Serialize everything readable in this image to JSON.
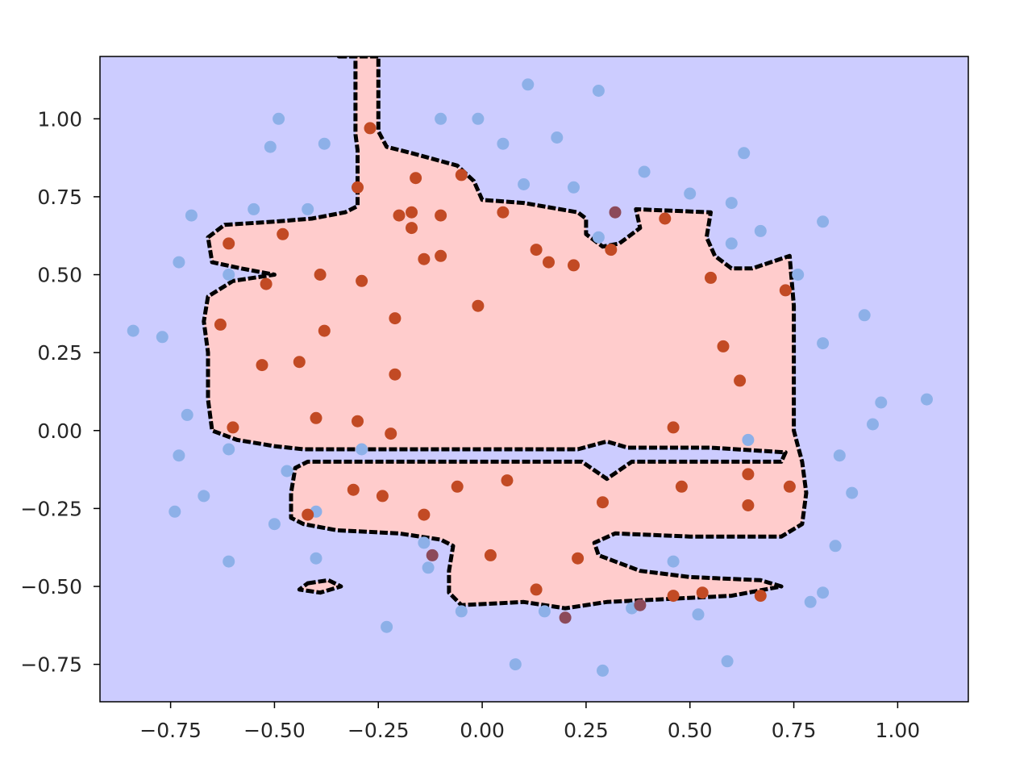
{
  "chart_data": {
    "type": "scatter",
    "title": "",
    "xlabel": "",
    "ylabel": "",
    "xlim": [
      -0.92,
      1.17
    ],
    "ylim": [
      -0.87,
      1.2
    ],
    "grid": false,
    "legend": "none",
    "xticks": [
      {
        "value": -0.75,
        "label": "−0.75"
      },
      {
        "value": -0.5,
        "label": "−0.50"
      },
      {
        "value": -0.25,
        "label": "−0.25"
      },
      {
        "value": 0.0,
        "label": "0.00"
      },
      {
        "value": 0.25,
        "label": "0.25"
      },
      {
        "value": 0.5,
        "label": "0.50"
      },
      {
        "value": 0.75,
        "label": "0.75"
      },
      {
        "value": 1.0,
        "label": "1.00"
      }
    ],
    "yticks": [
      {
        "value": -0.75,
        "label": "−0.75"
      },
      {
        "value": -0.5,
        "label": "−0.50"
      },
      {
        "value": -0.25,
        "label": "−0.25"
      },
      {
        "value": 0.0,
        "label": "0.00"
      },
      {
        "value": 0.25,
        "label": "0.25"
      },
      {
        "value": 0.5,
        "label": "0.50"
      },
      {
        "value": 0.75,
        "label": "0.75"
      },
      {
        "value": 1.0,
        "label": "1.00"
      }
    ],
    "colors": {
      "background_region": "#ccccff",
      "decision_region": "#ffcccc",
      "class_0_point": "#8db0e8",
      "class_1_point": "#c24a24",
      "misclassified_point": "#8c4a5a",
      "contour": "#000000"
    },
    "decision_region": [
      [
        -0.345,
        1.2
      ],
      [
        -0.305,
        1.2
      ],
      [
        -0.305,
        0.95
      ],
      [
        -0.3,
        0.9
      ],
      [
        -0.3,
        0.82
      ],
      [
        -0.3,
        0.72
      ],
      [
        -0.33,
        0.7
      ],
      [
        -0.41,
        0.68
      ],
      [
        -0.5,
        0.67
      ],
      [
        -0.62,
        0.66
      ],
      [
        -0.66,
        0.62
      ],
      [
        -0.65,
        0.54
      ],
      [
        -0.58,
        0.52
      ],
      [
        -0.5,
        0.5
      ],
      [
        -0.6,
        0.48
      ],
      [
        -0.66,
        0.43
      ],
      [
        -0.67,
        0.35
      ],
      [
        -0.66,
        0.25
      ],
      [
        -0.66,
        0.1
      ],
      [
        -0.65,
        0.0
      ],
      [
        -0.59,
        -0.03
      ],
      [
        -0.5,
        -0.05
      ],
      [
        -0.43,
        -0.06
      ],
      [
        -0.3,
        -0.06
      ],
      [
        -0.1,
        -0.06
      ],
      [
        0.05,
        -0.06
      ],
      [
        0.23,
        -0.06
      ],
      [
        0.3,
        -0.035
      ],
      [
        0.35,
        -0.055
      ],
      [
        0.55,
        -0.055
      ],
      [
        0.73,
        -0.07
      ],
      [
        0.72,
        -0.1
      ],
      [
        0.55,
        -0.1
      ],
      [
        0.36,
        -0.1
      ],
      [
        0.3,
        -0.155
      ],
      [
        0.24,
        -0.1
      ],
      [
        -0.05,
        -0.1
      ],
      [
        -0.42,
        -0.1
      ],
      [
        -0.45,
        -0.12
      ],
      [
        -0.46,
        -0.2
      ],
      [
        -0.46,
        -0.28
      ],
      [
        -0.43,
        -0.3
      ],
      [
        -0.35,
        -0.32
      ],
      [
        -0.2,
        -0.33
      ],
      [
        -0.1,
        -0.35
      ],
      [
        -0.07,
        -0.37
      ],
      [
        -0.08,
        -0.45
      ],
      [
        -0.08,
        -0.52
      ],
      [
        -0.05,
        -0.56
      ],
      [
        0.1,
        -0.55
      ],
      [
        0.2,
        -0.57
      ],
      [
        0.3,
        -0.55
      ],
      [
        0.45,
        -0.54
      ],
      [
        0.6,
        -0.53
      ],
      [
        0.72,
        -0.5
      ],
      [
        0.67,
        -0.48
      ],
      [
        0.5,
        -0.47
      ],
      [
        0.38,
        -0.45
      ],
      [
        0.28,
        -0.4
      ],
      [
        0.27,
        -0.36
      ],
      [
        0.32,
        -0.33
      ],
      [
        0.5,
        -0.34
      ],
      [
        0.72,
        -0.34
      ],
      [
        0.77,
        -0.3
      ],
      [
        0.78,
        -0.2
      ],
      [
        0.77,
        -0.1
      ],
      [
        0.76,
        -0.05
      ],
      [
        0.75,
        0.0
      ],
      [
        0.75,
        0.2
      ],
      [
        0.75,
        0.4
      ],
      [
        0.74,
        0.56
      ],
      [
        0.65,
        0.52
      ],
      [
        0.6,
        0.52
      ],
      [
        0.56,
        0.56
      ],
      [
        0.54,
        0.62
      ],
      [
        0.55,
        0.7
      ],
      [
        0.37,
        0.71
      ],
      [
        0.38,
        0.65
      ],
      [
        0.33,
        0.6
      ],
      [
        0.29,
        0.59
      ],
      [
        0.25,
        0.63
      ],
      [
        0.25,
        0.68
      ],
      [
        0.23,
        0.7
      ],
      [
        0.1,
        0.73
      ],
      [
        0.0,
        0.74
      ],
      [
        -0.02,
        0.8
      ],
      [
        -0.06,
        0.85
      ],
      [
        -0.17,
        0.89
      ],
      [
        -0.23,
        0.91
      ],
      [
        -0.25,
        0.96
      ],
      [
        -0.25,
        1.2
      ]
    ],
    "islands": [
      [
        [
          -0.42,
          -0.49
        ],
        [
          -0.37,
          -0.48
        ],
        [
          -0.34,
          -0.5
        ],
        [
          -0.39,
          -0.52
        ],
        [
          -0.44,
          -0.51
        ]
      ]
    ],
    "points_class_0": [
      [
        -0.49,
        1.0
      ],
      [
        -0.51,
        0.91
      ],
      [
        -0.38,
        0.92
      ],
      [
        -0.1,
        1.0
      ],
      [
        -0.01,
        1.0
      ],
      [
        0.11,
        1.11
      ],
      [
        0.28,
        1.09
      ],
      [
        0.05,
        0.92
      ],
      [
        0.18,
        0.94
      ],
      [
        0.1,
        0.79
      ],
      [
        0.22,
        0.78
      ],
      [
        0.39,
        0.83
      ],
      [
        0.5,
        0.76
      ],
      [
        0.63,
        0.89
      ],
      [
        0.6,
        0.73
      ],
      [
        0.67,
        0.64
      ],
      [
        0.82,
        0.67
      ],
      [
        0.6,
        0.6
      ],
      [
        0.28,
        0.62
      ],
      [
        0.76,
        0.5
      ],
      [
        0.92,
        0.37
      ],
      [
        0.82,
        0.28
      ],
      [
        0.96,
        0.09
      ],
      [
        1.07,
        0.1
      ],
      [
        0.94,
        0.02
      ],
      [
        0.86,
        -0.08
      ],
      [
        0.89,
        -0.2
      ],
      [
        0.64,
        -0.03
      ],
      [
        0.85,
        -0.37
      ],
      [
        0.82,
        -0.52
      ],
      [
        0.79,
        -0.55
      ],
      [
        0.46,
        -0.42
      ],
      [
        0.52,
        -0.59
      ],
      [
        0.59,
        -0.74
      ],
      [
        0.36,
        -0.57
      ],
      [
        0.29,
        -0.77
      ],
      [
        0.15,
        -0.58
      ],
      [
        0.08,
        -0.75
      ],
      [
        -0.05,
        -0.58
      ],
      [
        -0.23,
        -0.63
      ],
      [
        -0.14,
        -0.36
      ],
      [
        -0.13,
        -0.44
      ],
      [
        -0.4,
        -0.41
      ],
      [
        -0.5,
        -0.3
      ],
      [
        -0.47,
        -0.13
      ],
      [
        -0.61,
        -0.06
      ],
      [
        -0.67,
        -0.21
      ],
      [
        -0.74,
        -0.26
      ],
      [
        -0.61,
        -0.42
      ],
      [
        -0.73,
        -0.08
      ],
      [
        -0.71,
        0.05
      ],
      [
        -0.77,
        0.3
      ],
      [
        -0.84,
        0.32
      ],
      [
        -0.73,
        0.54
      ],
      [
        -0.7,
        0.69
      ],
      [
        -0.55,
        0.71
      ],
      [
        -0.42,
        0.71
      ],
      [
        -0.61,
        0.5
      ],
      [
        -0.29,
        -0.06
      ],
      [
        -0.4,
        -0.26
      ]
    ],
    "points_class_1": [
      [
        -0.27,
        0.97
      ],
      [
        -0.3,
        0.78
      ],
      [
        -0.16,
        0.81
      ],
      [
        -0.05,
        0.82
      ],
      [
        -0.2,
        0.69
      ],
      [
        -0.17,
        0.7
      ],
      [
        -0.17,
        0.65
      ],
      [
        -0.1,
        0.69
      ],
      [
        0.05,
        0.7
      ],
      [
        -0.48,
        0.63
      ],
      [
        -0.61,
        0.6
      ],
      [
        -0.52,
        0.47
      ],
      [
        -0.39,
        0.5
      ],
      [
        -0.29,
        0.48
      ],
      [
        -0.14,
        0.55
      ],
      [
        -0.1,
        0.56
      ],
      [
        0.13,
        0.58
      ],
      [
        0.16,
        0.54
      ],
      [
        0.22,
        0.53
      ],
      [
        0.31,
        0.58
      ],
      [
        0.44,
        0.68
      ],
      [
        0.55,
        0.49
      ],
      [
        0.73,
        0.45
      ],
      [
        -0.63,
        0.34
      ],
      [
        -0.38,
        0.32
      ],
      [
        -0.21,
        0.36
      ],
      [
        -0.01,
        0.4
      ],
      [
        0.58,
        0.27
      ],
      [
        -0.53,
        0.21
      ],
      [
        -0.44,
        0.22
      ],
      [
        -0.21,
        0.18
      ],
      [
        0.62,
        0.16
      ],
      [
        -0.6,
        0.01
      ],
      [
        -0.4,
        0.04
      ],
      [
        -0.3,
        0.03
      ],
      [
        -0.22,
        -0.01
      ],
      [
        0.46,
        0.01
      ],
      [
        -0.31,
        -0.19
      ],
      [
        -0.24,
        -0.21
      ],
      [
        -0.06,
        -0.18
      ],
      [
        0.06,
        -0.16
      ],
      [
        0.29,
        -0.23
      ],
      [
        0.48,
        -0.18
      ],
      [
        0.64,
        -0.14
      ],
      [
        0.74,
        -0.18
      ],
      [
        0.64,
        -0.24
      ],
      [
        -0.42,
        -0.27
      ],
      [
        -0.14,
        -0.27
      ],
      [
        0.02,
        -0.4
      ],
      [
        0.23,
        -0.41
      ],
      [
        0.13,
        -0.51
      ],
      [
        0.46,
        -0.53
      ],
      [
        0.53,
        -0.52
      ],
      [
        0.67,
        -0.53
      ]
    ],
    "points_misclassified": [
      [
        0.32,
        0.7
      ],
      [
        -0.12,
        -0.4
      ],
      [
        0.2,
        -0.6
      ],
      [
        0.38,
        -0.56
      ]
    ]
  }
}
